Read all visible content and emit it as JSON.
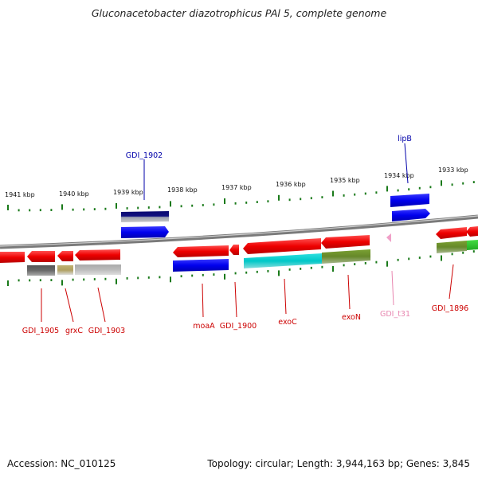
{
  "title": "Gluconacetobacter diazotrophicus PAl 5, complete genome",
  "footer": {
    "accession": "Accession: NC_010125",
    "summary": "Topology: circular; Length: 3,944,163 bp; Genes: 3,845"
  },
  "colors": {
    "backbone": "#8a8a8a",
    "tick": "#1a7a1a",
    "label_red": "#cc0000",
    "label_blue": "#0000aa",
    "label_pink": "#e887b0"
  },
  "scale_labels": [
    "1941 kbp",
    "1940 kbp",
    "1939 kbp",
    "1938 kbp",
    "1937 kbp",
    "1936 kbp",
    "1935 kbp",
    "1934 kbp",
    "1933 kbp"
  ],
  "gene_labels": [
    {
      "text": "GDI_1902",
      "color": "blue"
    },
    {
      "text": "lipB",
      "color": "blue"
    },
    {
      "text": "GDI_1905",
      "color": "red"
    },
    {
      "text": "grxC",
      "color": "red"
    },
    {
      "text": "GDI_1903",
      "color": "red"
    },
    {
      "text": "moaA",
      "color": "red"
    },
    {
      "text": "GDI_1900",
      "color": "red"
    },
    {
      "text": "exoC",
      "color": "red"
    },
    {
      "text": "exoN",
      "color": "red"
    },
    {
      "text": "GDI_t31",
      "color": "pink"
    },
    {
      "text": "GDI_1896",
      "color": "red"
    }
  ]
}
